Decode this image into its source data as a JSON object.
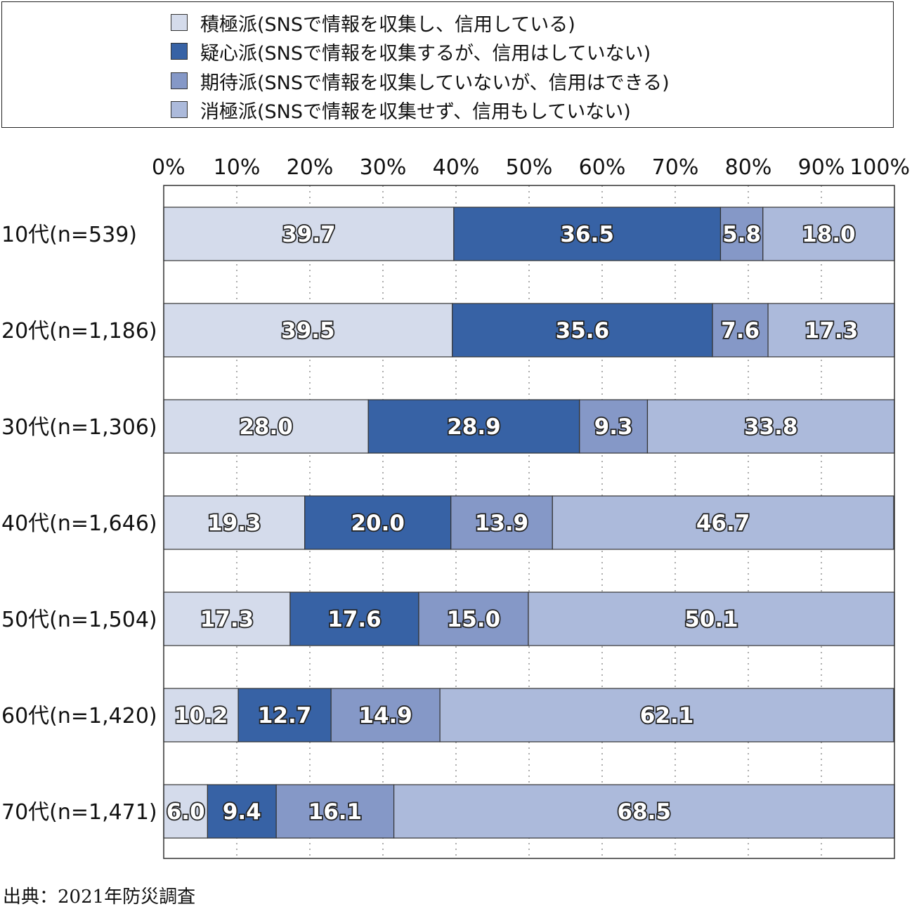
{
  "colors": {
    "series": [
      "#d4dbeb",
      "#3762a5",
      "#8598c7",
      "#acbadb"
    ],
    "border": "#333333",
    "grid": "#777777"
  },
  "source": "出典：2021年防災調査",
  "chart_data": {
    "type": "bar",
    "orientation": "horizontal",
    "stacked": true,
    "xlim": [
      0,
      100
    ],
    "x_ticks": [
      "0%",
      "10%",
      "20%",
      "30%",
      "40%",
      "50%",
      "60%",
      "70%",
      "80%",
      "90%",
      "100%"
    ],
    "categories": [
      "10代(n=539)",
      "20代(n=1,186)",
      "30代(n=1,306)",
      "40代(n=1,646)",
      "50代(n=1,504)",
      "60代(n=1,420)",
      "70代(n=1,471)"
    ],
    "series": [
      {
        "name": "積極派(SNSで情報を収集し、信用している)",
        "values": [
          39.7,
          39.5,
          28.0,
          19.3,
          17.3,
          10.2,
          6.0
        ],
        "labels": [
          "39.7",
          "39.5",
          "28.0",
          "19.3",
          "17.3",
          "10.2",
          "6.0"
        ]
      },
      {
        "name": "疑心派(SNSで情報を収集するが、信用はしていない)",
        "values": [
          36.5,
          35.6,
          28.9,
          20.0,
          17.6,
          12.7,
          9.4
        ],
        "labels": [
          "36.5",
          "35.6",
          "28.9",
          "20.0",
          "17.6",
          "12.7",
          "9.4"
        ]
      },
      {
        "name": "期待派(SNSで情報を収集していないが、信用はできる)",
        "values": [
          5.8,
          7.6,
          9.3,
          13.9,
          15.0,
          14.9,
          16.1
        ],
        "labels": [
          "5.8",
          "7.6",
          "9.3",
          "13.9",
          "15.0",
          "14.9",
          "16.1"
        ]
      },
      {
        "name": "消極派(SNSで情報を収集せず、信用もしていない)",
        "values": [
          18.0,
          17.3,
          33.8,
          46.7,
          50.1,
          62.1,
          68.5
        ],
        "labels": [
          "18.0",
          "17.3",
          "33.8",
          "46.7",
          "50.1",
          "62.1",
          "68.5"
        ]
      }
    ],
    "grid": true,
    "legend_position": "top"
  }
}
